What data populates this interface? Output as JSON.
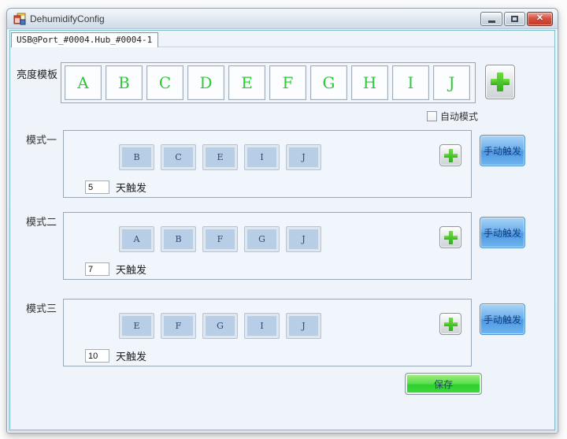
{
  "window": {
    "title": "DehumidifyConfig",
    "controls": {
      "minimize": "minimize",
      "maximize": "maximize",
      "close": "close"
    }
  },
  "tab": {
    "label": "USB@Port_#0004.Hub_#0004-1"
  },
  "template_section": {
    "label": "亮度模板",
    "letters": [
      "A",
      "B",
      "C",
      "D",
      "E",
      "F",
      "G",
      "H",
      "I",
      "J"
    ],
    "add_icon": "plus-icon"
  },
  "auto_mode": {
    "label": "自动模式",
    "checked": false
  },
  "modes": [
    {
      "label": "模式一",
      "templates": [
        "B",
        "C",
        "E",
        "I",
        "J"
      ],
      "days": "5",
      "days_suffix": "天触发",
      "manual_trigger_label": "手动触发"
    },
    {
      "label": "模式二",
      "templates": [
        "A",
        "B",
        "F",
        "G",
        "J"
      ],
      "days": "7",
      "days_suffix": "天触发",
      "manual_trigger_label": "手动触发"
    },
    {
      "label": "模式三",
      "templates": [
        "E",
        "F",
        "G",
        "I",
        "J"
      ],
      "days": "10",
      "days_suffix": "天触发",
      "manual_trigger_label": "手动触发"
    }
  ],
  "save_button": {
    "label": "保存"
  },
  "colors": {
    "template_letter_green": "#2dc937",
    "mode_button_blue": "#b7cee6",
    "manual_trigger_blue": "#5da4e8",
    "save_green": "#2ecf2e",
    "close_button_red": "#d9513f",
    "client_background": "#eff4fb"
  }
}
